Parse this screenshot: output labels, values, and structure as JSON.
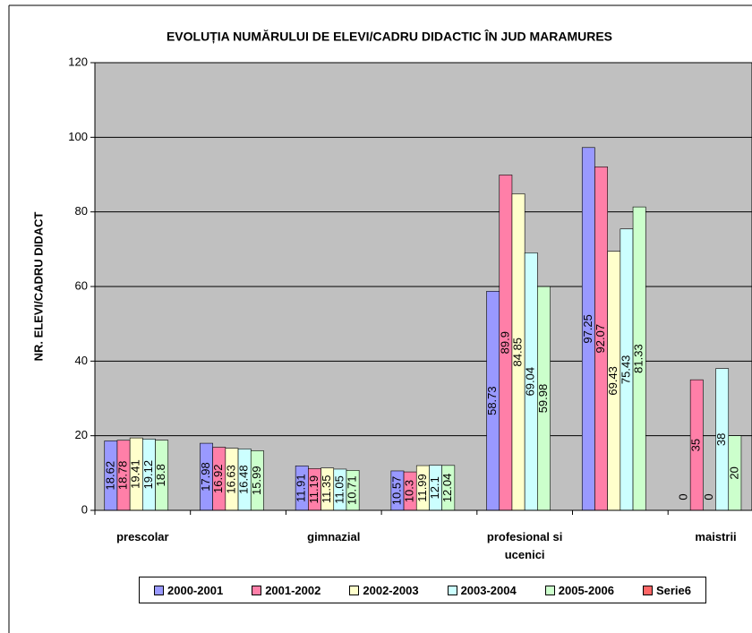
{
  "chart_data": {
    "type": "bar",
    "title": "EVOLUȚIA NUMĂRULUI DE ELEVI/CADRU DIDACTIC ÎN JUD MARAMURES",
    "y_label": "NR. ELEVI/CADRU DIDACT",
    "categories": [
      "prescolar",
      null,
      "gimnazial",
      null,
      "profesional si ucenici",
      null,
      "maistrii"
    ],
    "series": [
      {
        "name": "2000-2001",
        "color": "#9999ff",
        "values": [
          18.62,
          17.98,
          11.91,
          10.57,
          58.73,
          97.25,
          0
        ]
      },
      {
        "name": "2001-2002",
        "color": "#ff7fa8",
        "values": [
          18.78,
          16.92,
          11.19,
          10.3,
          89.9,
          92.07,
          35
        ]
      },
      {
        "name": "2002-2003",
        "color": "#ffffcc",
        "values": [
          19.41,
          16.63,
          11.35,
          11.99,
          84.85,
          69.43,
          0
        ]
      },
      {
        "name": "2003-2004",
        "color": "#ccffff",
        "values": [
          19.12,
          16.48,
          11.05,
          12.1,
          69.04,
          75.43,
          38
        ]
      },
      {
        "name": "2005-2006",
        "color": "#ccffcc",
        "values": [
          18.8,
          15.99,
          10.71,
          12.04,
          59.98,
          81.33,
          20
        ]
      },
      {
        "name": "Serie6",
        "color": "#ff6666",
        "values": [
          null,
          null,
          null,
          null,
          null,
          null,
          null
        ]
      }
    ],
    "ylim": [
      0,
      120
    ],
    "yticks": [
      0,
      20,
      40,
      60,
      80,
      100,
      120
    ],
    "grid": true,
    "plot_color": "#c0c0c0"
  }
}
